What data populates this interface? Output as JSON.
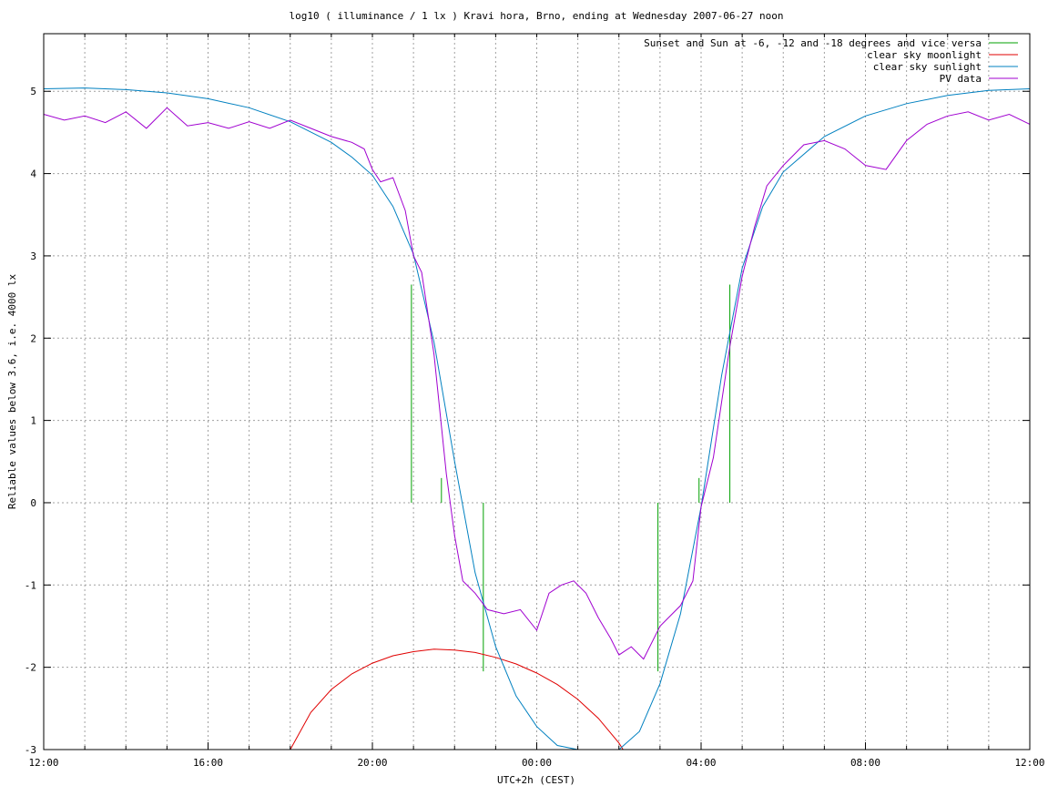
{
  "chart_data": {
    "type": "line",
    "title": "log10 ( illuminance / 1 lx ) Kravi hora, Brno, ending at Wednesday 2007-06-27 noon",
    "xlabel": "UTC+2h (CEST)",
    "ylabel": "Reliable values below 3.6, i.e. 4000 lx",
    "x_unit": "hours since 12:00",
    "xlim": [
      0,
      24
    ],
    "ylim": [
      -3,
      5.7
    ],
    "x_ticks": [
      {
        "x": 0,
        "label": "12:00"
      },
      {
        "x": 4,
        "label": "16:00"
      },
      {
        "x": 8,
        "label": "20:00"
      },
      {
        "x": 12,
        "label": "00:00"
      },
      {
        "x": 16,
        "label": "04:00"
      },
      {
        "x": 20,
        "label": "08:00"
      },
      {
        "x": 24,
        "label": "12:00"
      }
    ],
    "x_minor_step": 1,
    "y_ticks": [
      -3,
      -2,
      -1,
      0,
      1,
      2,
      3,
      4,
      5
    ],
    "grid": true,
    "legend_position": "top-right",
    "colors": {
      "sunset": "#00a000",
      "moonlight": "#e00000",
      "sunlight": "#0080c0",
      "pv": "#a000d0",
      "grid": "#a0a0a0"
    },
    "series": [
      {
        "name": "Sunset and Sun at -6, -12 and -18 degrees and vice versa",
        "type": "impulses",
        "points": [
          [
            8.95,
            2.65
          ],
          [
            9.68,
            0.3
          ],
          [
            10.7,
            -2.05
          ],
          [
            14.95,
            -2.05
          ],
          [
            15.95,
            0.3
          ],
          [
            16.7,
            2.65
          ]
        ]
      },
      {
        "name": "clear sky moonlight",
        "points": [
          [
            6.0,
            -3.0
          ],
          [
            6.5,
            -2.55
          ],
          [
            7.0,
            -2.27
          ],
          [
            7.5,
            -2.08
          ],
          [
            8.0,
            -1.95
          ],
          [
            8.5,
            -1.86
          ],
          [
            9.0,
            -1.81
          ],
          [
            9.5,
            -1.78
          ],
          [
            10.0,
            -1.79
          ],
          [
            10.5,
            -1.82
          ],
          [
            11.0,
            -1.88
          ],
          [
            11.5,
            -1.96
          ],
          [
            12.0,
            -2.07
          ],
          [
            12.5,
            -2.21
          ],
          [
            13.0,
            -2.39
          ],
          [
            13.5,
            -2.62
          ],
          [
            14.0,
            -2.92
          ],
          [
            14.1,
            -3.0
          ]
        ]
      },
      {
        "name": "clear sky sunlight",
        "points": [
          [
            0,
            5.03
          ],
          [
            1,
            5.04
          ],
          [
            2,
            5.02
          ],
          [
            3,
            4.98
          ],
          [
            4,
            4.91
          ],
          [
            5,
            4.8
          ],
          [
            6,
            4.63
          ],
          [
            7,
            4.38
          ],
          [
            7.5,
            4.2
          ],
          [
            8,
            3.98
          ],
          [
            8.5,
            3.6
          ],
          [
            9,
            3.02
          ],
          [
            9.5,
            1.95
          ],
          [
            10,
            0.5
          ],
          [
            10.5,
            -0.85
          ],
          [
            11,
            -1.75
          ],
          [
            11.5,
            -2.35
          ],
          [
            12,
            -2.72
          ],
          [
            12.5,
            -2.95
          ],
          [
            13.0,
            -3.0
          ],
          [
            13.5,
            -3.0
          ],
          [
            14.0,
            -3.0
          ],
          [
            14.5,
            -2.78
          ],
          [
            15.0,
            -2.2
          ],
          [
            15.5,
            -1.35
          ],
          [
            16,
            -0.05
          ],
          [
            16.5,
            1.55
          ],
          [
            17,
            2.85
          ],
          [
            17.5,
            3.6
          ],
          [
            18,
            4.02
          ],
          [
            19,
            4.45
          ],
          [
            20,
            4.7
          ],
          [
            21,
            4.85
          ],
          [
            22,
            4.95
          ],
          [
            23,
            5.01
          ],
          [
            24,
            5.03
          ]
        ]
      },
      {
        "name": "PV data",
        "points": [
          [
            0,
            4.72
          ],
          [
            0.5,
            4.65
          ],
          [
            1,
            4.7
          ],
          [
            1.5,
            4.62
          ],
          [
            2,
            4.75
          ],
          [
            2.5,
            4.55
          ],
          [
            3,
            4.8
          ],
          [
            3.5,
            4.58
          ],
          [
            4,
            4.62
          ],
          [
            4.5,
            4.55
          ],
          [
            5,
            4.63
          ],
          [
            5.5,
            4.55
          ],
          [
            6,
            4.65
          ],
          [
            6.5,
            4.55
          ],
          [
            7,
            4.45
          ],
          [
            7.5,
            4.38
          ],
          [
            7.8,
            4.3
          ],
          [
            8,
            4.05
          ],
          [
            8.2,
            3.9
          ],
          [
            8.5,
            3.95
          ],
          [
            8.8,
            3.55
          ],
          [
            9,
            3.0
          ],
          [
            9.2,
            2.8
          ],
          [
            9.5,
            1.8
          ],
          [
            9.8,
            0.35
          ],
          [
            10.0,
            -0.4
          ],
          [
            10.2,
            -0.95
          ],
          [
            10.5,
            -1.1
          ],
          [
            10.8,
            -1.3
          ],
          [
            11.2,
            -1.35
          ],
          [
            11.6,
            -1.3
          ],
          [
            12.0,
            -1.55
          ],
          [
            12.3,
            -1.1
          ],
          [
            12.6,
            -1.0
          ],
          [
            12.9,
            -0.95
          ],
          [
            13.2,
            -1.1
          ],
          [
            13.5,
            -1.4
          ],
          [
            13.8,
            -1.65
          ],
          [
            14.0,
            -1.85
          ],
          [
            14.3,
            -1.75
          ],
          [
            14.6,
            -1.9
          ],
          [
            15.0,
            -1.5
          ],
          [
            15.5,
            -1.25
          ],
          [
            15.8,
            -0.95
          ],
          [
            16.0,
            -0.05
          ],
          [
            16.3,
            0.55
          ],
          [
            16.7,
            1.9
          ],
          [
            17.0,
            2.75
          ],
          [
            17.3,
            3.35
          ],
          [
            17.6,
            3.85
          ],
          [
            18.0,
            4.1
          ],
          [
            18.5,
            4.35
          ],
          [
            19,
            4.4
          ],
          [
            19.5,
            4.3
          ],
          [
            20,
            4.1
          ],
          [
            20.5,
            4.05
          ],
          [
            21,
            4.4
          ],
          [
            21.5,
            4.6
          ],
          [
            22,
            4.7
          ],
          [
            22.5,
            4.75
          ],
          [
            23,
            4.65
          ],
          [
            23.5,
            4.72
          ],
          [
            24,
            4.6
          ]
        ]
      }
    ]
  }
}
